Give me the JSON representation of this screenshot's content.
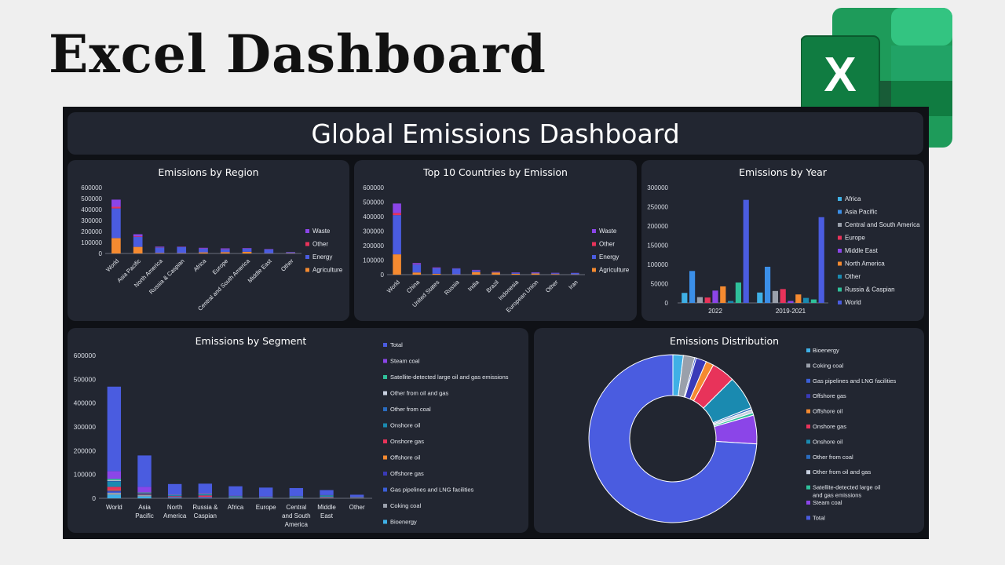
{
  "headline": "Excel Dashboard",
  "logo": {
    "letter": "X"
  },
  "dashboard_title": "Global Emissions Dashboard",
  "colors": {
    "World": "#4a5ce0",
    "Waste": "#8b45e8",
    "Other": "#e8335a",
    "Energy": "#4a5ce0",
    "Agriculture": "#f58a30",
    "Africa": "#3fb0e6",
    "Asia Pacific": "#3b8fe8",
    "Central and South America": "#9aa0ab",
    "Europe": "#e8335a",
    "Middle East": "#8b45e8",
    "North America": "#f58a30",
    "Other region": "#1a8ab0",
    "Russia & Caspian": "#2fc09a",
    "Bioenergy": "#3fb0e6",
    "Coking coal": "#9aa0ab",
    "Gas pipelines and LNG facilities": "#3b5fd8",
    "Offshore gas": "#3a3ab8",
    "Offshore oil": "#f58a30",
    "Onshore gas": "#e8335a",
    "Onshore oil": "#1a8ab0",
    "Other from coal": "#2a6cc0",
    "Other from oil and gas": "#c8d0e0",
    "Satellite-detected large oil and gas emissions": "#2fc09a",
    "Steam coal": "#8b45e8",
    "Total": "#4a5ce0"
  },
  "chart_data": [
    {
      "id": "region",
      "type": "bar",
      "stacked": true,
      "title": "Emissions by Region",
      "categories": [
        "World",
        "Asia Pacific",
        "North America",
        "Russia & Caspian",
        "Africa",
        "Europe",
        "Central and South America",
        "Middle East",
        "Other"
      ],
      "ylim": [
        0,
        600000
      ],
      "yticks": [
        "600000",
        "500000",
        "400000",
        "300000",
        "200000",
        "100000",
        "0"
      ],
      "series": [
        {
          "name": "Agriculture",
          "values": [
            140000,
            60000,
            5000,
            3000,
            10000,
            12000,
            15000,
            2000,
            3000
          ]
        },
        {
          "name": "Energy",
          "values": [
            270000,
            90000,
            50000,
            55000,
            33000,
            25000,
            28000,
            35000,
            8000
          ]
        },
        {
          "name": "Other",
          "values": [
            15000,
            5000,
            2000,
            1500,
            1500,
            1500,
            1000,
            1000,
            1000
          ]
        },
        {
          "name": "Waste",
          "values": [
            65000,
            20000,
            5000,
            3000,
            7000,
            8000,
            5000,
            3000,
            1000
          ]
        }
      ],
      "legend": [
        "Waste",
        "Other",
        "Energy",
        "Agriculture"
      ]
    },
    {
      "id": "countries",
      "type": "bar",
      "stacked": true,
      "title": "Top 10 Countries by Emission",
      "categories": [
        "World",
        "China",
        "United States",
        "Russia",
        "India",
        "Brazil",
        "Indonesia",
        "European Union",
        "Other",
        "Iran"
      ],
      "ylim": [
        0,
        600000
      ],
      "yticks": [
        "600000",
        "500000",
        "400000",
        "300000",
        "200000",
        "100000",
        "0"
      ],
      "series": [
        {
          "name": "Agriculture",
          "values": [
            140000,
            15000,
            6000,
            2000,
            18000,
            15000,
            6000,
            8000,
            4000,
            2000
          ]
        },
        {
          "name": "Energy",
          "values": [
            270000,
            55000,
            38000,
            40000,
            10000,
            2000,
            7000,
            5000,
            6000,
            9000
          ]
        },
        {
          "name": "Other",
          "values": [
            15000,
            2000,
            1000,
            500,
            1000,
            500,
            500,
            500,
            500,
            500
          ]
        },
        {
          "name": "Waste",
          "values": [
            65000,
            8000,
            5000,
            1500,
            4000,
            3000,
            2000,
            3000,
            2000,
            1000
          ]
        }
      ],
      "legend": [
        "Waste",
        "Other",
        "Energy",
        "Agriculture"
      ]
    },
    {
      "id": "year",
      "type": "bar",
      "stacked": false,
      "title": "Emissions by Year",
      "categories": [
        "2022",
        "2019-2021"
      ],
      "ylim": [
        0,
        300000
      ],
      "yticks": [
        "300000",
        "250000",
        "200000",
        "150000",
        "100000",
        "50000",
        "0"
      ],
      "series": [
        {
          "name": "Africa",
          "values": [
            26000,
            27000
          ]
        },
        {
          "name": "Asia Pacific",
          "values": [
            83000,
            94000
          ]
        },
        {
          "name": "Central and South America",
          "values": [
            15000,
            31000
          ]
        },
        {
          "name": "Europe",
          "values": [
            14000,
            36000
          ]
        },
        {
          "name": "Middle East",
          "values": [
            32000,
            5000
          ]
        },
        {
          "name": "North America",
          "values": [
            43000,
            22000
          ]
        },
        {
          "name": "Other",
          "values": [
            5000,
            13000
          ]
        },
        {
          "name": "Russia & Caspian",
          "values": [
            53000,
            9000
          ]
        },
        {
          "name": "World",
          "values": [
            268000,
            223000
          ]
        }
      ],
      "legend": [
        "Africa",
        "Asia Pacific",
        "Central and South America",
        "Europe",
        "Middle East",
        "North America",
        "Other",
        "Russia & Caspian",
        "World"
      ]
    },
    {
      "id": "segment",
      "type": "bar",
      "stacked": true,
      "title": "Emissions by Segment",
      "categories": [
        "World",
        "Asia Pacific",
        "North America",
        "Russia & Caspian",
        "Africa",
        "Europe",
        "Central and South America",
        "Middle East",
        "Other"
      ],
      "category_lines": [
        [
          "World"
        ],
        [
          "Asia",
          "Pacific"
        ],
        [
          "North",
          "America"
        ],
        [
          "Russia &",
          "Caspian"
        ],
        [
          "Africa"
        ],
        [
          "Europe"
        ],
        [
          "Central",
          "and South",
          "America"
        ],
        [
          "Middle",
          "East"
        ],
        [
          "Other"
        ]
      ],
      "ylim": [
        0,
        600000
      ],
      "yticks": [
        "600000",
        "500000",
        "400000",
        "300000",
        "200000",
        "100000",
        "0"
      ],
      "series": [
        {
          "name": "Bioenergy",
          "values": [
            15000,
            8000,
            2000,
            1000,
            3000,
            2000,
            3000,
            1000,
            1000
          ]
        },
        {
          "name": "Coking coal",
          "values": [
            8000,
            6000,
            1000,
            1000,
            500,
            500,
            500,
            500,
            500
          ]
        },
        {
          "name": "Gas pipelines and LNG facilities",
          "values": [
            5000,
            1000,
            2000,
            3000,
            500,
            500,
            500,
            500,
            500
          ]
        },
        {
          "name": "Offshore gas",
          "values": [
            4000,
            1000,
            500,
            500,
            500,
            500,
            500,
            500,
            500
          ]
        },
        {
          "name": "Offshore oil",
          "values": [
            3000,
            1000,
            500,
            500,
            500,
            500,
            500,
            500,
            500
          ]
        },
        {
          "name": "Onshore gas",
          "values": [
            13000,
            2000,
            3000,
            6000,
            1000,
            500,
            1000,
            2000,
            500
          ]
        },
        {
          "name": "Onshore oil",
          "values": [
            22000,
            3000,
            4000,
            4000,
            3000,
            1000,
            2000,
            6000,
            500
          ]
        },
        {
          "name": "Other from coal",
          "values": [
            3000,
            1000,
            500,
            500,
            500,
            500,
            500,
            500,
            500
          ]
        },
        {
          "name": "Other from oil and gas",
          "values": [
            4000,
            1000,
            1000,
            1000,
            500,
            500,
            500,
            500,
            500
          ]
        },
        {
          "name": "Satellite-detected large oil and gas emissions",
          "values": [
            5000,
            1000,
            500,
            2000,
            500,
            500,
            500,
            1000,
            500
          ]
        },
        {
          "name": "Steam coal",
          "values": [
            32000,
            23000,
            1000,
            3000,
            1000,
            1000,
            500,
            500,
            500
          ]
        },
        {
          "name": "Total",
          "values": [
            355000,
            132000,
            44000,
            39000,
            39000,
            37000,
            33000,
            21000,
            9000
          ]
        }
      ],
      "legend": [
        "Total",
        "Steam coal",
        "Satellite-detected large oil and gas emissions",
        "Other from oil and gas",
        "Other from coal",
        "Onshore oil",
        "Onshore gas",
        "Offshore oil",
        "Offshore gas",
        "Gas pipelines and LNG facilities",
        "Coking coal",
        "Bioenergy"
      ]
    },
    {
      "id": "distribution",
      "type": "pie",
      "donut": true,
      "title": "Emissions Distribution",
      "labels": [
        "Bioenergy",
        "Coking coal",
        "Gas pipelines and LNG facilities",
        "Offshore gas",
        "Offshore oil",
        "Onshore gas",
        "Onshore oil",
        "Other from coal",
        "Other from oil and gas",
        "Satellite-detected large oil and gas emissions",
        "Steam coal",
        "Total"
      ],
      "values": [
        2.0,
        2.2,
        0.3,
        2.0,
        1.5,
        4.5,
        6.5,
        0.4,
        0.6,
        0.5,
        5.5,
        74.0
      ]
    }
  ]
}
